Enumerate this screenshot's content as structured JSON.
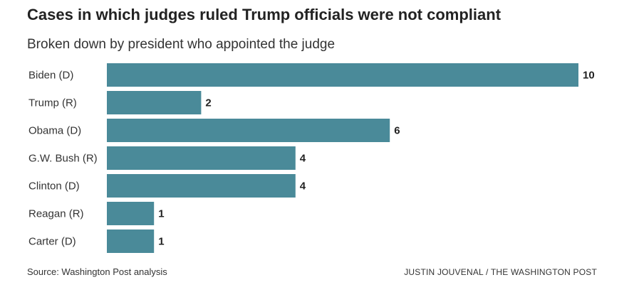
{
  "chart_data": {
    "type": "bar",
    "orientation": "horizontal",
    "title": "Cases in which judges ruled Trump officials were not compliant",
    "subtitle": "Broken down by president who appointed the judge",
    "categories": [
      "Biden (D)",
      "Trump (R)",
      "Obama (D)",
      "G.W. Bush (R)",
      "Clinton (D)",
      "Reagan (R)",
      "Carter (D)"
    ],
    "values": [
      10,
      2,
      6,
      4,
      4,
      1,
      1
    ],
    "xlim": [
      0,
      10
    ],
    "grid": false,
    "legend": "none",
    "data_labels": true
  },
  "footer": {
    "source": "Source: Washington Post analysis",
    "credit": "JUSTIN JOUVENAL / THE WASHINGTON POST"
  },
  "colors": {
    "bar": "#4a8a99",
    "text": "#222222"
  }
}
